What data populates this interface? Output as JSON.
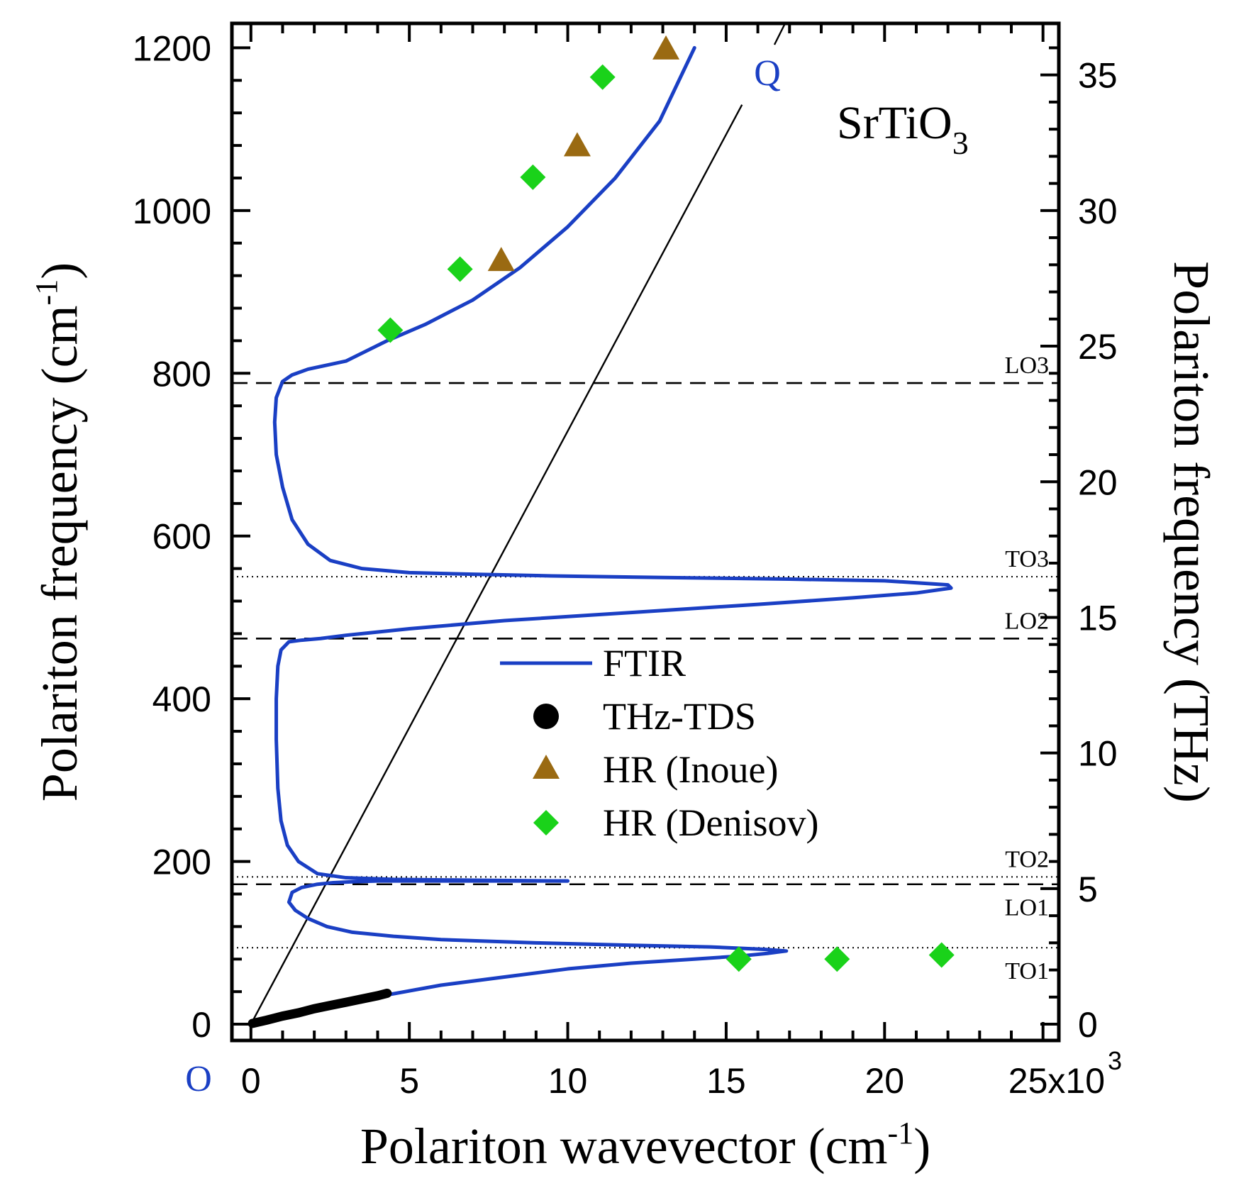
{
  "chart_data": {
    "type": "line",
    "title": "SrTiO3",
    "title_main": "SrTiO",
    "title_subscript": "3",
    "xlabel": "Polariton wavevector (cm",
    "xlabel_sup": "-1",
    "xlabel_close": ")",
    "ylabel": "Polariton frequency (cm",
    "ylabel_sup": "-1",
    "ylabel_close": ")",
    "y2label": "Polariton frequency (THz)",
    "x_multiplier_base": "25x10",
    "x_multiplier_exp": "3",
    "xlim": [
      -0.6,
      25.5
    ],
    "ylim": [
      -20,
      1230
    ],
    "y2lim_thz": [
      -0.6,
      36.9
    ],
    "xticks": [
      0,
      5,
      10,
      15,
      20
    ],
    "xtick_labels": [
      "0",
      "5",
      "10",
      "15",
      "20"
    ],
    "yticks": [
      0,
      200,
      400,
      600,
      800,
      1000,
      1200
    ],
    "ytick_labels": [
      "0",
      "200",
      "400",
      "600",
      "800",
      "1000",
      "1200"
    ],
    "y2ticks": [
      0,
      5,
      10,
      15,
      20,
      25,
      30,
      35
    ],
    "y2tick_labels": [
      "0",
      "5",
      "10",
      "15",
      "20",
      "25",
      "30",
      "35"
    ],
    "origin_label": "O",
    "light_line_label": "Q",
    "light_line": {
      "x": [
        0,
        15.5
      ],
      "y": [
        0,
        1130
      ]
    },
    "reference_lines": [
      {
        "label": "LO3",
        "y": 788,
        "style": "dashed"
      },
      {
        "label": "TO3",
        "y": 550,
        "style": "dotted"
      },
      {
        "label": "LO2",
        "y": 474,
        "style": "dashed"
      },
      {
        "label": "TO2",
        "y": 181,
        "style": "dotted"
      },
      {
        "label": "LO1",
        "y": 172,
        "style": "dashed"
      },
      {
        "label": "TO1",
        "y": 94,
        "style": "dotted"
      }
    ],
    "legend": [
      {
        "name": "FTIR",
        "marker": "line",
        "color": "#1a3fc4"
      },
      {
        "name": "THz-TDS",
        "marker": "circle",
        "color": "#000000"
      },
      {
        "name": "HR (Inoue)",
        "marker": "triangle",
        "color": "#9a6a12"
      },
      {
        "name": "HR (Denisov)",
        "marker": "diamond",
        "color": "#1ad21a"
      }
    ],
    "series": [
      {
        "name": "FTIR",
        "color": "#1a3fc4",
        "x": [
          4.3,
          6.0,
          8.0,
          10.0,
          12.0,
          14.0,
          15.5,
          16.3,
          16.7,
          16.9,
          16.2,
          14.5,
          12.0,
          9.0,
          6.0,
          4.5,
          3.2,
          2.4,
          1.8,
          1.4,
          1.2,
          1.3,
          1.6,
          2.1,
          2.6,
          3.2,
          4.0,
          5.5,
          7.5,
          10.0
        ],
        "y": [
          36,
          48,
          58,
          68,
          75,
          80,
          84,
          87,
          89,
          90,
          92,
          95,
          97,
          100,
          104,
          108,
          113,
          120,
          130,
          140,
          150,
          162,
          168,
          172,
          174,
          175,
          176,
          176,
          176,
          176
        ],
        "x2": [
          10.0,
          7.0,
          4.5,
          3.0,
          2.1,
          1.5,
          1.15,
          0.95,
          0.85,
          0.8,
          0.8,
          0.85,
          0.95,
          1.2,
          1.6,
          2.2,
          3.0,
          5.0,
          8.0,
          12.0,
          16.0,
          19.0,
          21.0,
          22.1,
          22.0,
          20.0,
          17.0,
          13.0,
          9.5,
          7.0,
          5.0,
          3.5,
          2.5,
          1.8,
          1.3,
          1.0,
          0.8,
          0.75,
          0.8,
          1.0,
          1.3,
          1.8,
          3.0,
          4.3,
          5.5,
          7.0,
          8.5,
          10.0,
          11.5,
          12.9,
          14.0
        ],
        "y2": [
          176,
          177,
          178,
          180,
          185,
          200,
          220,
          250,
          290,
          350,
          400,
          440,
          460,
          470,
          472,
          474,
          478,
          486,
          496,
          506,
          516,
          524,
          530,
          536,
          540,
          545,
          547,
          549,
          551,
          553,
          555,
          560,
          570,
          590,
          620,
          660,
          700,
          740,
          770,
          790,
          798,
          805,
          815,
          840,
          860,
          890,
          930,
          980,
          1040,
          1110,
          1200
        ]
      },
      {
        "name": "THz-TDS",
        "color": "#000000",
        "x": [
          0.05,
          0.5,
          1.0,
          1.5,
          2.0,
          2.5,
          3.0,
          3.5,
          4.0,
          4.3
        ],
        "y": [
          1,
          5,
          10,
          14,
          19,
          23,
          27,
          31,
          35,
          38
        ]
      },
      {
        "name": "HR (Inoue)",
        "color": "#9a6a12",
        "x": [
          7.9,
          10.3,
          13.1
        ],
        "y": [
          937,
          1078,
          1197
        ]
      },
      {
        "name": "HR (Denisov)",
        "color": "#1ad21a",
        "x": [
          4.4,
          6.6,
          8.9,
          11.1,
          15.4,
          18.5,
          21.8
        ],
        "y": [
          853,
          928,
          1041,
          1164,
          80,
          80,
          85
        ]
      }
    ]
  }
}
